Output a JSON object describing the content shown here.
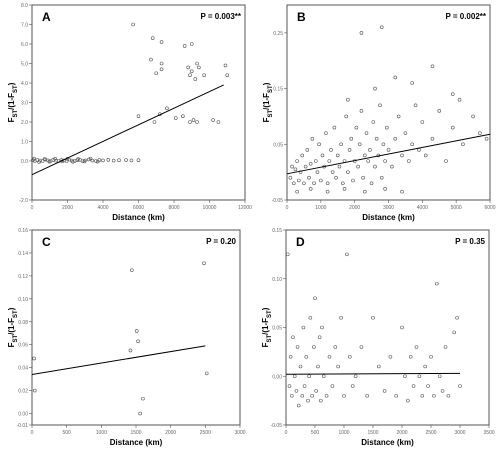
{
  "chart_data": [
    {
      "type": "scatter",
      "panel": "A",
      "p_label": "P = 0.003**",
      "xlabel": "Distance (km)",
      "ylabel": "Fst/(1-Fst)",
      "xlim": [
        0,
        12000
      ],
      "ylim": [
        -2.0,
        8.0
      ],
      "xticks": [
        "0",
        "2000",
        "4000",
        "6000",
        "8000",
        "10000",
        "12000"
      ],
      "yticks": [
        "-2.0",
        "0.0",
        "1.0",
        "2.0",
        "3.0",
        "4.0",
        "5.0",
        "6.0",
        "7.0",
        "8.0"
      ],
      "trend": {
        "x": [
          0,
          10800
        ],
        "y": [
          -0.7,
          3.9
        ]
      },
      "points": [
        [
          50,
          0.05
        ],
        [
          150,
          0.0
        ],
        [
          300,
          0.05
        ],
        [
          450,
          0.02
        ],
        [
          600,
          0.0
        ],
        [
          750,
          0.08
        ],
        [
          900,
          0.03
        ],
        [
          1050,
          0.0
        ],
        [
          1200,
          0.06
        ],
        [
          1350,
          0.02
        ],
        [
          1500,
          0.0
        ],
        [
          1650,
          0.05
        ],
        [
          1800,
          0.03
        ],
        [
          1950,
          0.0
        ],
        [
          2100,
          0.07
        ],
        [
          2250,
          0.02
        ],
        [
          2400,
          0.0
        ],
        [
          2550,
          0.04
        ],
        [
          2700,
          0.06
        ],
        [
          2850,
          0.0
        ],
        [
          3000,
          0.03
        ],
        [
          3200,
          0.08
        ],
        [
          3400,
          0.02
        ],
        [
          3600,
          0.0
        ],
        [
          3800,
          0.05
        ],
        [
          4000,
          0.03
        ],
        [
          4300,
          0.06
        ],
        [
          4600,
          0.02
        ],
        [
          4900,
          0.04
        ],
        [
          5300,
          0.05
        ],
        [
          5600,
          0.03
        ],
        [
          6000,
          0.04
        ],
        [
          120,
          0.12
        ],
        [
          400,
          -0.05
        ],
        [
          700,
          0.1
        ],
        [
          980,
          -0.03
        ],
        [
          1300,
          0.12
        ],
        [
          1700,
          -0.02
        ],
        [
          2000,
          0.11
        ],
        [
          2300,
          -0.04
        ],
        [
          2600,
          0.1
        ],
        [
          2950,
          -0.02
        ],
        [
          3300,
          0.12
        ],
        [
          3700,
          -0.03
        ],
        [
          5700,
          7.0
        ],
        [
          6800,
          6.3
        ],
        [
          7300,
          6.1
        ],
        [
          8600,
          5.9
        ],
        [
          9000,
          6.0
        ],
        [
          9300,
          5.0
        ],
        [
          8800,
          4.8
        ],
        [
          9000,
          4.6
        ],
        [
          8900,
          4.4
        ],
        [
          9400,
          4.8
        ],
        [
          9700,
          4.4
        ],
        [
          9200,
          4.2
        ],
        [
          10900,
          4.9
        ],
        [
          11000,
          4.4
        ],
        [
          7300,
          5.0
        ],
        [
          7300,
          4.7
        ],
        [
          6700,
          5.2
        ],
        [
          7000,
          4.5
        ],
        [
          6000,
          2.3
        ],
        [
          6900,
          2.0
        ],
        [
          7200,
          2.4
        ],
        [
          8100,
          2.2
        ],
        [
          8500,
          2.3
        ],
        [
          8900,
          2.0
        ],
        [
          9100,
          2.1
        ],
        [
          9300,
          2.0
        ],
        [
          10200,
          2.1
        ],
        [
          10500,
          2.0
        ],
        [
          7600,
          2.7
        ]
      ]
    },
    {
      "type": "scatter",
      "panel": "B",
      "p_label": "P = 0.002**",
      "xlabel": "Distance (km)",
      "ylabel": "Fst/(1-Fst)",
      "xlim": [
        0,
        6000
      ],
      "ylim": [
        -0.05,
        0.3
      ],
      "xticks": [
        "0",
        "1000",
        "2000",
        "3000",
        "4000",
        "5000",
        "6000"
      ],
      "yticks": [
        "-0.05",
        "0.05",
        "0.15",
        "0.25"
      ],
      "trend": {
        "x": [
          0,
          6000
        ],
        "y": [
          -0.003,
          0.068
        ]
      },
      "points": [
        [
          100,
          -0.01
        ],
        [
          150,
          0.01
        ],
        [
          200,
          -0.02
        ],
        [
          250,
          0.005
        ],
        [
          300,
          0.02
        ],
        [
          350,
          -0.015
        ],
        [
          400,
          0.0
        ],
        [
          450,
          0.03
        ],
        [
          500,
          -0.02
        ],
        [
          550,
          0.01
        ],
        [
          600,
          0.04
        ],
        [
          650,
          -0.01
        ],
        [
          700,
          0.015
        ],
        [
          750,
          0.06
        ],
        [
          800,
          -0.02
        ],
        [
          850,
          0.02
        ],
        [
          900,
          0.0
        ],
        [
          950,
          0.05
        ],
        [
          1000,
          -0.015
        ],
        [
          1050,
          0.03
        ],
        [
          1100,
          0.01
        ],
        [
          1150,
          0.07
        ],
        [
          1200,
          -0.02
        ],
        [
          1250,
          0.02
        ],
        [
          1300,
          0.04
        ],
        [
          1350,
          0.0
        ],
        [
          1400,
          0.08
        ],
        [
          1450,
          -0.01
        ],
        [
          1500,
          0.03
        ],
        [
          1550,
          0.01
        ],
        [
          1600,
          0.05
        ],
        [
          1650,
          -0.02
        ],
        [
          1700,
          0.02
        ],
        [
          1750,
          0.1
        ],
        [
          1800,
          0.0
        ],
        [
          1850,
          0.04
        ],
        [
          1900,
          0.06
        ],
        [
          1950,
          -0.015
        ],
        [
          2000,
          0.02
        ],
        [
          2050,
          0.08
        ],
        [
          2100,
          0.01
        ],
        [
          2150,
          0.05
        ],
        [
          2200,
          0.11
        ],
        [
          2250,
          -0.01
        ],
        [
          2300,
          0.03
        ],
        [
          2350,
          0.07
        ],
        [
          2400,
          0.02
        ],
        [
          2450,
          0.04
        ],
        [
          2500,
          -0.02
        ],
        [
          2550,
          0.09
        ],
        [
          2600,
          0.01
        ],
        [
          2650,
          0.06
        ],
        [
          2700,
          0.03
        ],
        [
          2750,
          0.12
        ],
        [
          2800,
          -0.01
        ],
        [
          2850,
          0.05
        ],
        [
          2900,
          0.02
        ],
        [
          2950,
          0.08
        ],
        [
          3000,
          0.04
        ],
        [
          3100,
          0.01
        ],
        [
          3200,
          0.06
        ],
        [
          3300,
          0.1
        ],
        [
          3400,
          0.03
        ],
        [
          3500,
          0.07
        ],
        [
          3600,
          0.02
        ],
        [
          3700,
          0.05
        ],
        [
          3800,
          0.12
        ],
        [
          3900,
          0.04
        ],
        [
          4000,
          0.09
        ],
        [
          4100,
          0.03
        ],
        [
          4300,
          0.06
        ],
        [
          4500,
          0.11
        ],
        [
          4700,
          0.02
        ],
        [
          4900,
          0.08
        ],
        [
          5200,
          0.05
        ],
        [
          5500,
          0.1
        ],
        [
          5700,
          0.07
        ],
        [
          5900,
          0.06
        ],
        [
          2200,
          0.25
        ],
        [
          2800,
          0.26
        ],
        [
          3200,
          0.17
        ],
        [
          3700,
          0.16
        ],
        [
          4300,
          0.19
        ],
        [
          4900,
          0.14
        ],
        [
          5100,
          0.13
        ],
        [
          1800,
          0.13
        ],
        [
          2600,
          0.15
        ],
        [
          300,
          -0.035
        ],
        [
          700,
          -0.03
        ],
        [
          1200,
          -0.035
        ],
        [
          1700,
          -0.03
        ],
        [
          2300,
          -0.035
        ],
        [
          2900,
          -0.03
        ],
        [
          3400,
          -0.035
        ]
      ]
    },
    {
      "type": "scatter",
      "panel": "C",
      "p_label": "P = 0.20",
      "xlabel": "Distance (km)",
      "ylabel": "Fst/(1-Fst)",
      "xlim": [
        0,
        3000
      ],
      "ylim": [
        -0.01,
        0.16
      ],
      "xticks": [
        "0",
        "500",
        "1000",
        "1500",
        "2000",
        "2500",
        "3000"
      ],
      "yticks": [
        "-0.01",
        "0.00",
        "0.02",
        "0.04",
        "0.06",
        "0.08",
        "0.10",
        "0.12",
        "0.14",
        "0.16"
      ],
      "trend": {
        "x": [
          0,
          2500
        ],
        "y": [
          0.034,
          0.059
        ]
      },
      "points": [
        [
          30,
          0.048
        ],
        [
          40,
          0.02
        ],
        [
          1420,
          0.055
        ],
        [
          1440,
          0.125
        ],
        [
          1510,
          0.072
        ],
        [
          1530,
          0.063
        ],
        [
          1560,
          0.0
        ],
        [
          1600,
          0.013
        ],
        [
          2480,
          0.131
        ],
        [
          2520,
          0.035
        ]
      ]
    },
    {
      "type": "scatter",
      "panel": "D",
      "p_label": "P = 0.35",
      "xlabel": "Distance (km)",
      "ylabel": "Fst/(1-Fst)",
      "xlim": [
        0,
        3500
      ],
      "ylim": [
        -0.05,
        0.15
      ],
      "xticks": [
        "0",
        "500",
        "1000",
        "1500",
        "2000",
        "2500",
        "3000",
        "3500"
      ],
      "yticks": [
        "-0.05",
        "0.00",
        "0.05",
        "0.10",
        "0.15"
      ],
      "trend": {
        "x": [
          0,
          3000
        ],
        "y": [
          0.002,
          0.003
        ]
      },
      "points": [
        [
          30,
          0.125
        ],
        [
          60,
          -0.01
        ],
        [
          80,
          0.02
        ],
        [
          100,
          -0.02
        ],
        [
          120,
          0.04
        ],
        [
          150,
          0.0
        ],
        [
          180,
          -0.015
        ],
        [
          200,
          0.03
        ],
        [
          220,
          -0.03
        ],
        [
          250,
          0.01
        ],
        [
          280,
          -0.02
        ],
        [
          300,
          0.05
        ],
        [
          320,
          -0.01
        ],
        [
          350,
          0.02
        ],
        [
          380,
          -0.025
        ],
        [
          400,
          0.0
        ],
        [
          420,
          0.06
        ],
        [
          450,
          -0.02
        ],
        [
          480,
          0.03
        ],
        [
          500,
          0.08
        ],
        [
          520,
          -0.015
        ],
        [
          550,
          0.01
        ],
        [
          580,
          0.04
        ],
        [
          600,
          -0.025
        ],
        [
          620,
          0.05
        ],
        [
          650,
          0.0
        ],
        [
          700,
          -0.02
        ],
        [
          750,
          0.02
        ],
        [
          800,
          -0.01
        ],
        [
          850,
          0.03
        ],
        [
          900,
          0.01
        ],
        [
          950,
          0.06
        ],
        [
          1000,
          -0.02
        ],
        [
          1050,
          0.125
        ],
        [
          1100,
          0.02
        ],
        [
          1150,
          -0.01
        ],
        [
          1200,
          0.0
        ],
        [
          1300,
          0.03
        ],
        [
          1400,
          -0.02
        ],
        [
          1500,
          0.06
        ],
        [
          1600,
          0.01
        ],
        [
          1700,
          -0.015
        ],
        [
          1800,
          0.02
        ],
        [
          1900,
          -0.02
        ],
        [
          2000,
          0.05
        ],
        [
          2050,
          0.0
        ],
        [
          2100,
          -0.025
        ],
        [
          2150,
          0.02
        ],
        [
          2200,
          -0.01
        ],
        [
          2250,
          0.03
        ],
        [
          2300,
          0.0
        ],
        [
          2350,
          -0.02
        ],
        [
          2400,
          0.01
        ],
        [
          2450,
          -0.01
        ],
        [
          2500,
          0.02
        ],
        [
          2550,
          -0.02
        ],
        [
          2600,
          0.095
        ],
        [
          2650,
          0.0
        ],
        [
          2700,
          -0.015
        ],
        [
          2750,
          0.03
        ],
        [
          2800,
          -0.02
        ],
        [
          2900,
          0.045
        ],
        [
          2950,
          0.06
        ],
        [
          3000,
          -0.01
        ]
      ]
    }
  ]
}
